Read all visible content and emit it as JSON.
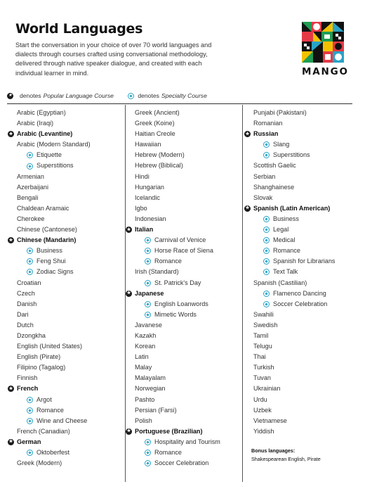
{
  "header": {
    "title": "World Languages",
    "intro": "Start the conversation in your choice of over 70 world languages and dialects through courses crafted using conversational methodology, delivered through native speaker dialogue, and created with each individual learner in mind."
  },
  "brand": {
    "name": "MANGO"
  },
  "legend": {
    "popular_label": "denotes",
    "popular_text": "Popular Language Course",
    "specialty_label": "denotes",
    "specialty_text": "Specialty Course",
    "popular_icon": "star-circle-icon",
    "specialty_icon": "diamond-circle-icon"
  },
  "colors": {
    "popular": "#1a1a1a",
    "specialty": "#2aa3c6"
  },
  "columns": [
    [
      {
        "t": "Arabic (Egyptian)",
        "k": "n"
      },
      {
        "t": "Arabic (Iraqi)",
        "k": "n"
      },
      {
        "t": "Arabic (Levantine)",
        "k": "p"
      },
      {
        "t": "Arabic (Modern Standard)",
        "k": "n"
      },
      {
        "t": "Etiquette",
        "k": "s"
      },
      {
        "t": "Superstitions",
        "k": "s"
      },
      {
        "t": "Armenian",
        "k": "n"
      },
      {
        "t": "Azerbaijani",
        "k": "n"
      },
      {
        "t": "Bengali",
        "k": "n"
      },
      {
        "t": "Chaldean Aramaic",
        "k": "n"
      },
      {
        "t": "Cherokee",
        "k": "n"
      },
      {
        "t": "Chinese (Cantonese)",
        "k": "n"
      },
      {
        "t": "Chinese (Mandarin)",
        "k": "p"
      },
      {
        "t": "Business",
        "k": "s"
      },
      {
        "t": "Feng Shui",
        "k": "s"
      },
      {
        "t": "Zodiac Signs",
        "k": "s"
      },
      {
        "t": "Croatian",
        "k": "n"
      },
      {
        "t": "Czech",
        "k": "n"
      },
      {
        "t": "Danish",
        "k": "n"
      },
      {
        "t": "Dari",
        "k": "n"
      },
      {
        "t": "Dutch",
        "k": "n"
      },
      {
        "t": "Dzongkha",
        "k": "n"
      },
      {
        "t": "English (United States)",
        "k": "n"
      },
      {
        "t": "English (Pirate)",
        "k": "n"
      },
      {
        "t": "Filipino (Tagalog)",
        "k": "n"
      },
      {
        "t": "Finnish",
        "k": "n"
      },
      {
        "t": "French",
        "k": "p"
      },
      {
        "t": "Argot",
        "k": "s"
      },
      {
        "t": "Romance",
        "k": "s"
      },
      {
        "t": "Wine and Cheese",
        "k": "s"
      },
      {
        "t": "French (Canadian)",
        "k": "n"
      },
      {
        "t": "German",
        "k": "p"
      },
      {
        "t": "Oktoberfest",
        "k": "s"
      },
      {
        "t": "Greek (Modern)",
        "k": "n"
      }
    ],
    [
      {
        "t": "Greek (Ancient)",
        "k": "n"
      },
      {
        "t": "Greek (Koine)",
        "k": "n"
      },
      {
        "t": "Haitian Creole",
        "k": "n"
      },
      {
        "t": "Hawaiian",
        "k": "n"
      },
      {
        "t": "Hebrew (Modern)",
        "k": "n"
      },
      {
        "t": "Hebrew (Biblical)",
        "k": "n"
      },
      {
        "t": "Hindi",
        "k": "n"
      },
      {
        "t": "Hungarian",
        "k": "n"
      },
      {
        "t": "Icelandic",
        "k": "n"
      },
      {
        "t": "Igbo",
        "k": "n"
      },
      {
        "t": "Indonesian",
        "k": "n"
      },
      {
        "t": "Italian",
        "k": "p"
      },
      {
        "t": "Carnival of Venice",
        "k": "s"
      },
      {
        "t": "Horse Race of Siena",
        "k": "s"
      },
      {
        "t": "Romance",
        "k": "s"
      },
      {
        "t": "Irish (Standard)",
        "k": "n"
      },
      {
        "t": "St. Patrick's Day",
        "k": "s"
      },
      {
        "t": "Japanese",
        "k": "p"
      },
      {
        "t": "English Loanwords",
        "k": "s"
      },
      {
        "t": "Mimetic Words",
        "k": "s"
      },
      {
        "t": "Javanese",
        "k": "n"
      },
      {
        "t": "Kazakh",
        "k": "n"
      },
      {
        "t": "Korean",
        "k": "n"
      },
      {
        "t": "Latin",
        "k": "n"
      },
      {
        "t": "Malay",
        "k": "n"
      },
      {
        "t": "Malayalam",
        "k": "n"
      },
      {
        "t": "Norwegian",
        "k": "n"
      },
      {
        "t": "Pashto",
        "k": "n"
      },
      {
        "t": "Persian (Farsi)",
        "k": "n"
      },
      {
        "t": "Polish",
        "k": "n"
      },
      {
        "t": "Portuguese (Brazilian)",
        "k": "p"
      },
      {
        "t": "Hospitality and Tourism",
        "k": "s"
      },
      {
        "t": "Romance",
        "k": "s"
      },
      {
        "t": "Soccer Celebration",
        "k": "s"
      }
    ],
    [
      {
        "t": "Punjabi (Pakistani)",
        "k": "n"
      },
      {
        "t": "Romanian",
        "k": "n"
      },
      {
        "t": "Russian",
        "k": "p"
      },
      {
        "t": "Slang",
        "k": "s"
      },
      {
        "t": "Superstitions",
        "k": "s"
      },
      {
        "t": "Scottish Gaelic",
        "k": "n"
      },
      {
        "t": "Serbian",
        "k": "n"
      },
      {
        "t": "Shanghainese",
        "k": "n"
      },
      {
        "t": "Slovak",
        "k": "n"
      },
      {
        "t": "Spanish (Latin American)",
        "k": "p"
      },
      {
        "t": "Business",
        "k": "s"
      },
      {
        "t": "Legal",
        "k": "s"
      },
      {
        "t": "Medical",
        "k": "s"
      },
      {
        "t": "Romance",
        "k": "s"
      },
      {
        "t": "Spanish for Librarians",
        "k": "s"
      },
      {
        "t": "Text Talk",
        "k": "s"
      },
      {
        "t": "Spanish (Castilian)",
        "k": "n"
      },
      {
        "t": "Flamenco Dancing",
        "k": "s"
      },
      {
        "t": "Soccer Celebration",
        "k": "s"
      },
      {
        "t": "Swahili",
        "k": "n"
      },
      {
        "t": "Swedish",
        "k": "n"
      },
      {
        "t": "Tamil",
        "k": "n"
      },
      {
        "t": "Telugu",
        "k": "n"
      },
      {
        "t": "Thai",
        "k": "n"
      },
      {
        "t": "Turkish",
        "k": "n"
      },
      {
        "t": "Tuvan",
        "k": "n"
      },
      {
        "t": "Ukrainian",
        "k": "n"
      },
      {
        "t": "Urdu",
        "k": "n"
      },
      {
        "t": "Uzbek",
        "k": "n"
      },
      {
        "t": "Vietnamese",
        "k": "n"
      },
      {
        "t": "Yiddish",
        "k": "n"
      }
    ]
  ],
  "bonus": {
    "heading": "Bonus languages:",
    "text": "Shakespearean English, Pirate"
  }
}
